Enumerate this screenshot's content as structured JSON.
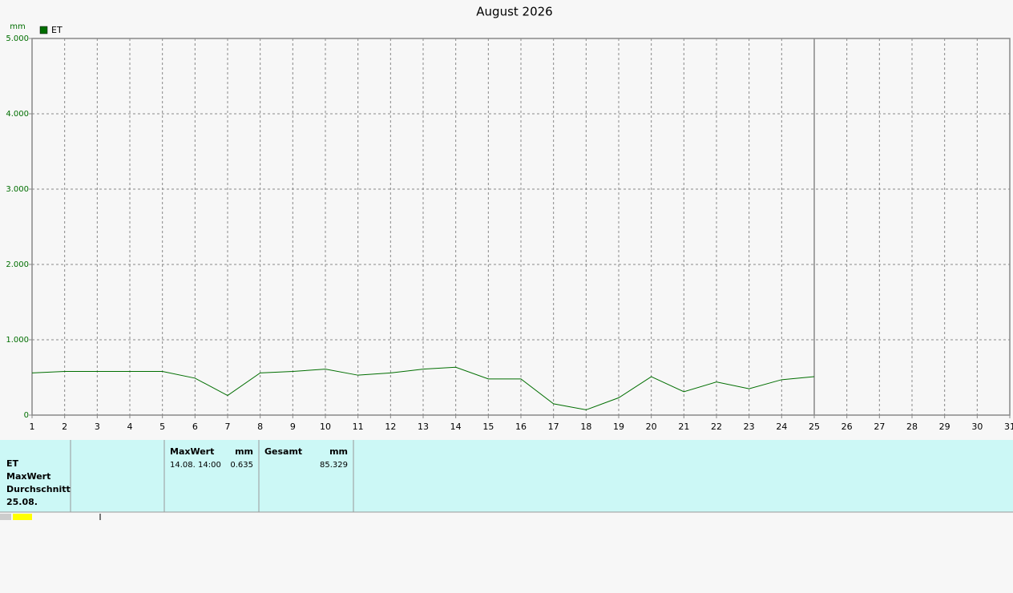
{
  "chart_data": {
    "type": "line",
    "title": "August 2026",
    "y_unit": "mm",
    "x": [
      1,
      2,
      3,
      4,
      5,
      6,
      7,
      8,
      9,
      10,
      11,
      12,
      13,
      14,
      15,
      16,
      17,
      18,
      19,
      20,
      21,
      22,
      23,
      24,
      25
    ],
    "series": [
      {
        "name": "ET",
        "color": "#006e00",
        "values": [
          0.56,
          0.58,
          0.58,
          0.58,
          0.58,
          0.49,
          0.26,
          0.56,
          0.58,
          0.61,
          0.53,
          0.56,
          0.61,
          0.635,
          0.48,
          0.48,
          0.15,
          0.07,
          0.23,
          0.51,
          0.31,
          0.44,
          0.35,
          0.47,
          0.51
        ]
      }
    ],
    "xlim": [
      1,
      31
    ],
    "xticks": [
      1,
      2,
      3,
      4,
      5,
      6,
      7,
      8,
      9,
      10,
      11,
      12,
      13,
      14,
      15,
      16,
      17,
      18,
      19,
      20,
      21,
      22,
      23,
      24,
      25,
      26,
      27,
      28,
      29,
      30,
      31
    ],
    "ylim": [
      0,
      5
    ],
    "yticks": [
      0,
      {
        "value": 1,
        "label": "1.000"
      },
      {
        "value": 2,
        "label": "2.000"
      },
      {
        "value": 3,
        "label": "3.000"
      },
      {
        "value": 4,
        "label": "4.000"
      },
      {
        "value": 5,
        "label": "5.000"
      }
    ],
    "grid": true,
    "cursor_x": 25
  },
  "table": {
    "labels": [
      "ET",
      "MaxWert",
      "Durchschnitt",
      "25.08."
    ],
    "columns": [
      {
        "header": "MaxWert",
        "unit": "mm",
        "date": "14.08.  14:00",
        "value": "0.635"
      },
      {
        "header": "Gesamt",
        "unit": "mm",
        "value": "85.329"
      }
    ]
  }
}
